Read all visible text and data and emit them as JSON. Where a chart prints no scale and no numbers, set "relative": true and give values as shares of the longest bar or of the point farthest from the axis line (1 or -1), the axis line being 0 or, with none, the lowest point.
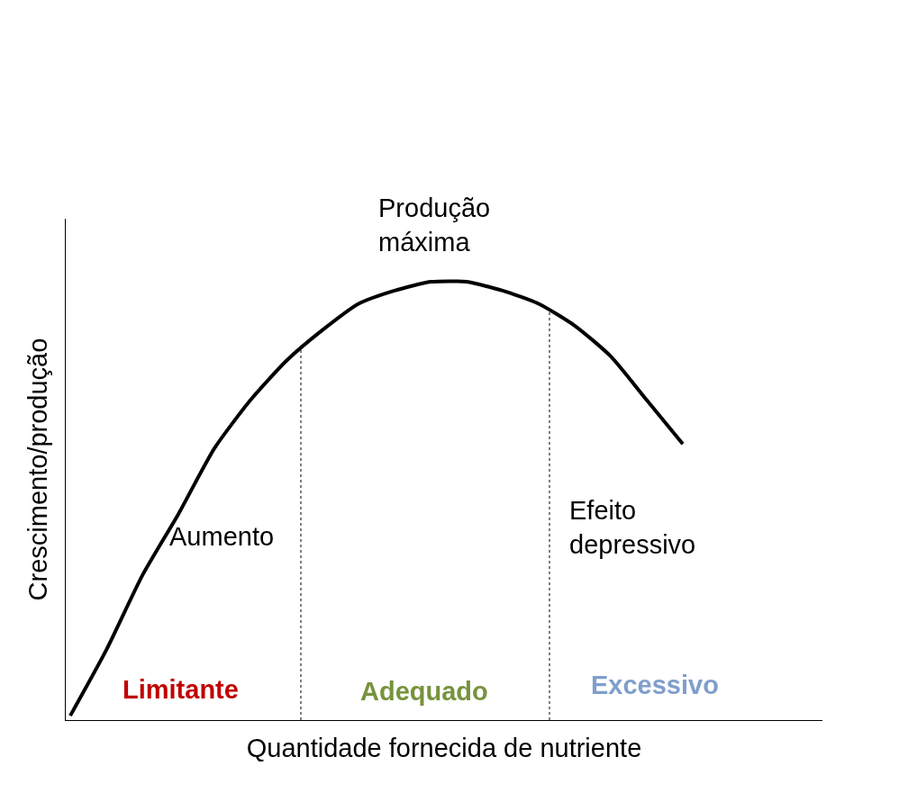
{
  "chart_data": {
    "type": "line",
    "relative": true,
    "xlabel": "Quantidade fornecida de nutriente",
    "ylabel": "Crescimento/produção",
    "categories": [
      null,
      null,
      null,
      null,
      null,
      null,
      null,
      null,
      null,
      null,
      null,
      null,
      null,
      null,
      null,
      null,
      null,
      null
    ],
    "series": [
      {
        "color": "#000000",
        "values": [
          0.01,
          0.16,
          0.33,
          0.47,
          0.62,
          0.73,
          0.82,
          0.89,
          0.95,
          0.98,
          1.0,
          1.0,
          0.98,
          0.95,
          0.9,
          0.83,
          0.73,
          0.63
        ]
      }
    ],
    "annotations": [
      "Produção\nmáxima",
      "Aumento",
      "Efeito\ndepressivo",
      "Limitante",
      "Adequado",
      "Excessivo"
    ],
    "legend": false,
    "marker": "none",
    "line_style": "solid"
  }
}
